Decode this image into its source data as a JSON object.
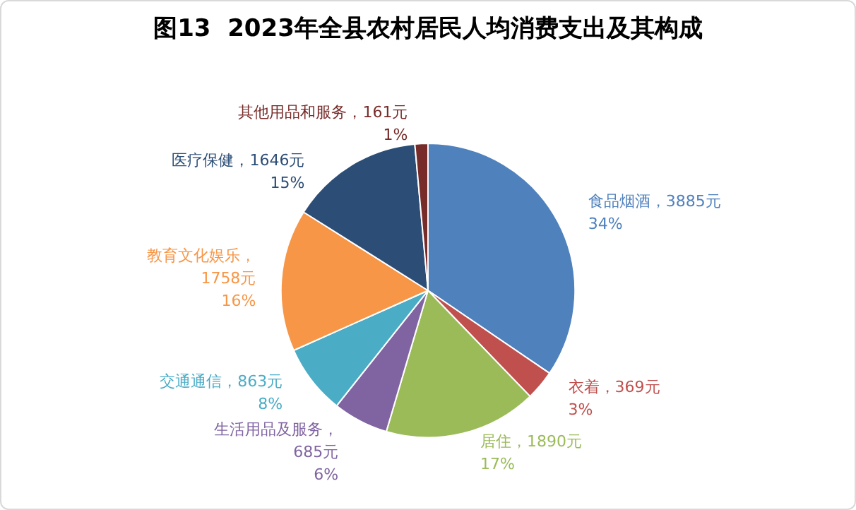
{
  "chart_data": {
    "type": "pie",
    "title": "图13  2023年全县农村居民人均消费支出及其构成",
    "categories": [
      "食品烟酒",
      "衣着",
      "居住",
      "生活用品及服务",
      "交通通信",
      "教育文化娱乐",
      "医疗保健",
      "其他用品和服务"
    ],
    "values": [
      3885,
      369,
      1890,
      685,
      863,
      1758,
      1646,
      161
    ],
    "colors": [
      "#4f81bd",
      "#c0504d",
      "#9bbb59",
      "#8064a2",
      "#4bacc6",
      "#f79646",
      "#2c4d75",
      "#772c2a"
    ],
    "value_labels": [
      "，3885元\n34%",
      "，369元\n3%",
      "，1890元\n17%",
      "，\n685元\n6%",
      "，863元\n8%",
      "，\n1758元\n16%",
      "，1646元\n15%",
      "，161元\n1%"
    ],
    "legend": false
  }
}
